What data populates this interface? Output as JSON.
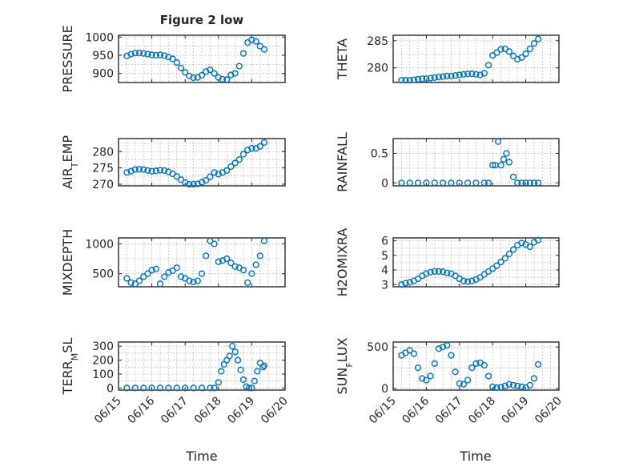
{
  "figure": {
    "title": "Figure 2 low",
    "x_dates": [
      "06/15",
      "06/16",
      "06/17",
      "06/18",
      "06/19",
      "06/20"
    ],
    "xlabel": "Time",
    "marker_color": "#0072bd"
  },
  "chart_data": [
    {
      "type": "scatter",
      "title": "Figure 2 low",
      "ylabel": "PRESSURE",
      "ylabel_sub": "",
      "ylabel_tail": "",
      "xlim": [
        "06/15",
        "06/20"
      ],
      "ylim": [
        875,
        1005
      ],
      "yticks": [
        900,
        950,
        1000
      ],
      "grid": true,
      "x": [
        "06/15 06:00",
        "06/15 09:00",
        "06/15 12:00",
        "06/15 15:00",
        "06/15 18:00",
        "06/15 21:00",
        "06/16 00:00",
        "06/16 03:00",
        "06/16 06:00",
        "06/16 09:00",
        "06/16 12:00",
        "06/16 15:00",
        "06/16 18:00",
        "06/16 21:00",
        "06/17 00:00",
        "06/17 03:00",
        "06/17 06:00",
        "06/17 09:00",
        "06/17 12:00",
        "06/17 15:00",
        "06/17 18:00",
        "06/17 21:00",
        "06/18 00:00",
        "06/18 03:00",
        "06/18 06:00",
        "06/18 09:00",
        "06/18 12:00",
        "06/18 15:00",
        "06/18 18:00",
        "06/18 21:00",
        "06/19 00:00",
        "06/19 03:00",
        "06/19 06:00",
        "06/19 09:00"
      ],
      "y": [
        948,
        953,
        956,
        956,
        955,
        953,
        951,
        950,
        951,
        949,
        945,
        940,
        930,
        915,
        903,
        893,
        888,
        889,
        895,
        905,
        910,
        900,
        889,
        884,
        883,
        896,
        900,
        920,
        955,
        985,
        992,
        988,
        975,
        966
      ]
    },
    {
      "type": "scatter",
      "ylabel": "THETA",
      "ylabel_sub": "",
      "ylabel_tail": "",
      "xlim": [
        "06/15",
        "06/20"
      ],
      "ylim": [
        277.3,
        286
      ],
      "yticks": [
        280,
        285
      ],
      "grid": true,
      "x": [
        "06/15 06:00",
        "06/15 09:00",
        "06/15 12:00",
        "06/15 15:00",
        "06/15 18:00",
        "06/15 21:00",
        "06/16 00:00",
        "06/16 03:00",
        "06/16 06:00",
        "06/16 09:00",
        "06/16 12:00",
        "06/16 15:00",
        "06/16 18:00",
        "06/16 21:00",
        "06/17 00:00",
        "06/17 03:00",
        "06/17 06:00",
        "06/17 09:00",
        "06/17 12:00",
        "06/17 15:00",
        "06/17 18:00",
        "06/17 21:00",
        "06/18 00:00",
        "06/18 03:00",
        "06/18 06:00",
        "06/18 09:00",
        "06/18 12:00",
        "06/18 15:00",
        "06/18 18:00",
        "06/18 21:00",
        "06/19 00:00",
        "06/19 03:00",
        "06/19 06:00",
        "06/19 09:00"
      ],
      "y": [
        277.7,
        277.7,
        277.7,
        277.8,
        277.9,
        278.0,
        278.0,
        278.1,
        278.2,
        278.3,
        278.4,
        278.5,
        278.5,
        278.6,
        278.7,
        278.8,
        278.9,
        278.9,
        278.8,
        278.7,
        279.0,
        280.5,
        282.3,
        282.8,
        283.4,
        283.5,
        283.0,
        282.2,
        281.6,
        281.9,
        282.6,
        283.5,
        284.5,
        285.3
      ]
    },
    {
      "type": "scatter",
      "ylabel": "AIR",
      "ylabel_sub": "T",
      "ylabel_tail": "EMP",
      "xlim": [
        "06/15",
        "06/20"
      ],
      "ylim": [
        269.5,
        284
      ],
      "yticks": [
        270,
        275,
        280
      ],
      "grid": true,
      "x": [
        "06/15 06:00",
        "06/15 09:00",
        "06/15 12:00",
        "06/15 15:00",
        "06/15 18:00",
        "06/15 21:00",
        "06/16 00:00",
        "06/16 03:00",
        "06/16 06:00",
        "06/16 09:00",
        "06/16 12:00",
        "06/16 15:00",
        "06/16 18:00",
        "06/16 21:00",
        "06/17 00:00",
        "06/17 03:00",
        "06/17 06:00",
        "06/17 09:00",
        "06/17 12:00",
        "06/17 15:00",
        "06/17 18:00",
        "06/17 21:00",
        "06/18 00:00",
        "06/18 03:00",
        "06/18 06:00",
        "06/18 09:00",
        "06/18 12:00",
        "06/18 15:00",
        "06/18 18:00",
        "06/18 21:00",
        "06/19 00:00",
        "06/19 03:00",
        "06/19 06:00",
        "06/19 09:00"
      ],
      "y": [
        273.6,
        274.0,
        274.5,
        274.6,
        274.5,
        274.2,
        274.0,
        274.1,
        274.3,
        274.2,
        273.8,
        273.2,
        272.4,
        271.4,
        270.5,
        270.0,
        270.0,
        270.1,
        270.6,
        271.2,
        272.3,
        273.6,
        273.1,
        273.6,
        274.2,
        275.4,
        276.5,
        277.6,
        279.2,
        280.5,
        281.0,
        281.0,
        281.6,
        282.8
      ]
    },
    {
      "type": "scatter",
      "ylabel": "RAINFALL",
      "ylabel_sub": "",
      "ylabel_tail": "",
      "xlim": [
        "06/15",
        "06/20"
      ],
      "ylim": [
        -0.05,
        0.75
      ],
      "yticks": [
        0,
        0.5
      ],
      "grid": true,
      "x": [
        "06/15 06:00",
        "06/15 12:00",
        "06/15 18:00",
        "06/16 00:00",
        "06/16 06:00",
        "06/16 12:00",
        "06/16 18:00",
        "06/17 00:00",
        "06/17 06:00",
        "06/17 12:00",
        "06/17 18:00",
        "06/17 21:00",
        "06/18 00:00",
        "06/18 02:00",
        "06/18 04:00",
        "06/18 06:00",
        "06/18 08:00",
        "06/18 10:00",
        "06/18 12:00",
        "06/18 15:00",
        "06/18 18:00",
        "06/18 21:00",
        "06/19 00:00",
        "06/19 03:00",
        "06/19 06:00",
        "06/19 09:00"
      ],
      "y": [
        0,
        0,
        0,
        0,
        0,
        0,
        0,
        0,
        0,
        0,
        0,
        0,
        0.3,
        0.3,
        0.7,
        0.3,
        0.4,
        0.5,
        0.35,
        0.1,
        0,
        0,
        0,
        0,
        0,
        0
      ]
    },
    {
      "type": "scatter",
      "ylabel": "MIXDEPTH",
      "ylabel_sub": "",
      "ylabel_tail": "",
      "xlim": [
        "06/15",
        "06/20"
      ],
      "ylim": [
        280,
        1100
      ],
      "yticks": [
        500,
        1000
      ],
      "grid": true,
      "x": [
        "06/15 06:00",
        "06/15 09:00",
        "06/15 12:00",
        "06/15 15:00",
        "06/15 18:00",
        "06/15 21:00",
        "06/16 00:00",
        "06/16 03:00",
        "06/16 06:00",
        "06/16 09:00",
        "06/16 12:00",
        "06/16 15:00",
        "06/16 18:00",
        "06/16 21:00",
        "06/17 00:00",
        "06/17 03:00",
        "06/17 06:00",
        "06/17 09:00",
        "06/17 12:00",
        "06/17 15:00",
        "06/17 18:00",
        "06/17 21:00",
        "06/18 00:00",
        "06/18 03:00",
        "06/18 06:00",
        "06/18 09:00",
        "06/18 12:00",
        "06/18 15:00",
        "06/18 18:00",
        "06/18 21:00",
        "06/19 00:00",
        "06/19 03:00",
        "06/19 06:00",
        "06/19 09:00"
      ],
      "y": [
        420,
        350,
        330,
        380,
        450,
        500,
        560,
        580,
        330,
        450,
        520,
        550,
        600,
        450,
        420,
        380,
        360,
        380,
        500,
        800,
        1050,
        1000,
        700,
        720,
        750,
        680,
        620,
        600,
        560,
        350,
        500,
        650,
        800,
        1050
      ]
    },
    {
      "type": "scatter",
      "ylabel": "H2OMIXRA",
      "ylabel_sub": "",
      "ylabel_tail": "",
      "xlim": [
        "06/15",
        "06/20"
      ],
      "ylim": [
        2.85,
        6.2
      ],
      "yticks": [
        3,
        4,
        5,
        6
      ],
      "grid": true,
      "x": [
        "06/15 06:00",
        "06/15 09:00",
        "06/15 12:00",
        "06/15 15:00",
        "06/15 18:00",
        "06/15 21:00",
        "06/16 00:00",
        "06/16 03:00",
        "06/16 06:00",
        "06/16 09:00",
        "06/16 12:00",
        "06/16 15:00",
        "06/16 18:00",
        "06/16 21:00",
        "06/17 00:00",
        "06/17 03:00",
        "06/17 06:00",
        "06/17 09:00",
        "06/17 12:00",
        "06/17 15:00",
        "06/17 18:00",
        "06/17 21:00",
        "06/18 00:00",
        "06/18 03:00",
        "06/18 06:00",
        "06/18 09:00",
        "06/18 12:00",
        "06/18 15:00",
        "06/18 18:00",
        "06/18 21:00",
        "06/19 00:00",
        "06/19 03:00",
        "06/19 06:00",
        "06/19 09:00"
      ],
      "y": [
        3.0,
        3.1,
        3.15,
        3.25,
        3.4,
        3.6,
        3.75,
        3.85,
        3.9,
        3.9,
        3.88,
        3.8,
        3.75,
        3.6,
        3.4,
        3.25,
        3.2,
        3.25,
        3.35,
        3.5,
        3.7,
        3.9,
        4.1,
        4.3,
        4.55,
        4.8,
        5.1,
        5.4,
        5.7,
        5.85,
        5.75,
        5.6,
        5.9,
        6.05
      ]
    },
    {
      "type": "scatter",
      "ylabel": "TERR",
      "ylabel_sub": "M",
      "ylabel_tail": "SL",
      "xlim": [
        "06/15",
        "06/20"
      ],
      "ylim": [
        -15,
        330
      ],
      "yticks": [
        0,
        100,
        200,
        300
      ],
      "grid": true,
      "x": [
        "06/15 06:00",
        "06/15 12:00",
        "06/15 18:00",
        "06/16 00:00",
        "06/16 06:00",
        "06/16 12:00",
        "06/16 18:00",
        "06/17 00:00",
        "06/17 06:00",
        "06/17 12:00",
        "06/17 18:00",
        "06/17 21:00",
        "06/18 00:00",
        "06/18 02:00",
        "06/18 04:00",
        "06/18 06:00",
        "06/18 08:00",
        "06/18 10:00",
        "06/18 12:00",
        "06/18 14:00",
        "06/18 16:00",
        "06/18 18:00",
        "06/18 20:00",
        "06/18 22:00",
        "06/19 00:00",
        "06/19 02:00",
        "06/19 04:00",
        "06/19 06:00",
        "06/19 08:00",
        "06/19 09:00"
      ],
      "y": [
        0,
        0,
        0,
        0,
        0,
        0,
        0,
        0,
        0,
        0,
        0,
        0,
        40,
        120,
        170,
        200,
        230,
        300,
        260,
        200,
        130,
        60,
        10,
        0,
        0,
        50,
        120,
        180,
        150,
        160
      ]
    },
    {
      "type": "scatter",
      "ylabel": "SUN",
      "ylabel_sub": "F",
      "ylabel_tail": "LUX",
      "xlim": [
        "06/15",
        "06/20"
      ],
      "ylim": [
        -20,
        560
      ],
      "yticks": [
        0,
        500
      ],
      "grid": true,
      "x": [
        "06/15 06:00",
        "06/15 09:00",
        "06/15 12:00",
        "06/15 15:00",
        "06/15 18:00",
        "06/15 21:00",
        "06/16 00:00",
        "06/16 03:00",
        "06/16 06:00",
        "06/16 09:00",
        "06/16 12:00",
        "06/16 15:00",
        "06/16 18:00",
        "06/16 21:00",
        "06/17 00:00",
        "06/17 03:00",
        "06/17 06:00",
        "06/17 09:00",
        "06/17 12:00",
        "06/17 15:00",
        "06/17 18:00",
        "06/17 21:00",
        "06/18 00:00",
        "06/18 03:00",
        "06/18 06:00",
        "06/18 09:00",
        "06/18 12:00",
        "06/18 15:00",
        "06/18 18:00",
        "06/18 21:00",
        "06/19 00:00",
        "06/19 03:00",
        "06/19 06:00",
        "06/19 09:00"
      ],
      "y": [
        400,
        430,
        460,
        420,
        250,
        120,
        100,
        150,
        300,
        480,
        500,
        520,
        400,
        200,
        60,
        50,
        100,
        250,
        300,
        310,
        280,
        150,
        20,
        10,
        15,
        30,
        50,
        40,
        30,
        20,
        10,
        40,
        120,
        290
      ]
    }
  ]
}
